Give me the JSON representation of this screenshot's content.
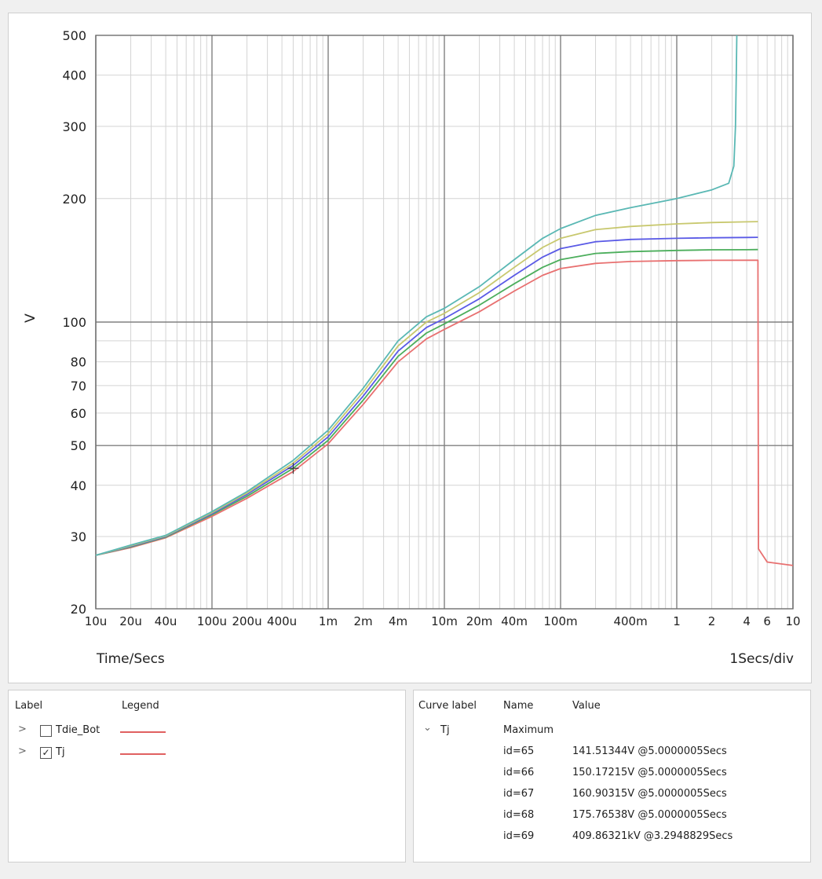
{
  "chart_data": {
    "type": "line",
    "xscale": "log",
    "yscale": "log",
    "xlim": [
      1e-05,
      10
    ],
    "ylim": [
      20,
      500
    ],
    "ylabel": "V",
    "xlabel": "Time/Secs",
    "scale_label": "1Secs/div",
    "grid": true,
    "x_major_ticks": [
      {
        "value": 1e-05,
        "label": "10u"
      },
      {
        "value": 0.0001,
        "label": "100u"
      },
      {
        "value": 0.001,
        "label": "1m"
      },
      {
        "value": 0.01,
        "label": "10m"
      },
      {
        "value": 0.1,
        "label": "100m"
      },
      {
        "value": 1,
        "label": "1"
      },
      {
        "value": 10,
        "label": "10"
      }
    ],
    "x_minor_ticks": [
      {
        "value": 2e-05,
        "label": "20u"
      },
      {
        "value": 4e-05,
        "label": "40u"
      },
      {
        "value": 0.0002,
        "label": "200u"
      },
      {
        "value": 0.0004,
        "label": "400u"
      },
      {
        "value": 0.002,
        "label": "2m"
      },
      {
        "value": 0.004,
        "label": "4m"
      },
      {
        "value": 0.02,
        "label": "20m"
      },
      {
        "value": 0.04,
        "label": "40m"
      },
      {
        "value": 0.4,
        "label": "400m"
      },
      {
        "value": 2,
        "label": "2"
      },
      {
        "value": 4,
        "label": "4"
      },
      {
        "value": 6,
        "label": "6"
      }
    ],
    "y_ticks": [
      {
        "value": 20,
        "label": "20"
      },
      {
        "value": 30,
        "label": "30"
      },
      {
        "value": 40,
        "label": "40"
      },
      {
        "value": 50,
        "label": "50"
      },
      {
        "value": 60,
        "label": "60"
      },
      {
        "value": 70,
        "label": "70"
      },
      {
        "value": 80,
        "label": "80"
      },
      {
        "value": 100,
        "label": "100"
      },
      {
        "value": 200,
        "label": "200"
      },
      {
        "value": 300,
        "label": "300"
      },
      {
        "value": 400,
        "label": "400"
      },
      {
        "value": 500,
        "label": "500"
      }
    ],
    "cursor": {
      "x": 0.0005,
      "y": 44
    },
    "series": [
      {
        "color": "#e87070",
        "x": [
          1e-05,
          2e-05,
          4e-05,
          0.0001,
          0.0002,
          0.0005,
          0.001,
          0.002,
          0.004,
          0.007,
          0.01,
          0.02,
          0.04,
          0.07,
          0.1,
          0.2,
          0.4,
          1,
          2,
          4,
          5.0,
          5.05,
          6,
          10
        ],
        "y": [
          27,
          28.2,
          29.8,
          33.6,
          37.2,
          43.2,
          50.5,
          63,
          80,
          91,
          96,
          106,
          119,
          130,
          135,
          139,
          140.5,
          141.2,
          141.4,
          141.5,
          141.5,
          28,
          26,
          25.5
        ]
      },
      {
        "color": "#4cae5c",
        "x": [
          1e-05,
          2e-05,
          4e-05,
          0.0001,
          0.0002,
          0.0005,
          0.001,
          0.002,
          0.004,
          0.007,
          0.01,
          0.02,
          0.04,
          0.07,
          0.1,
          0.2,
          0.4,
          1,
          2,
          4,
          5.0
        ],
        "y": [
          27,
          28.3,
          29.9,
          33.9,
          37.6,
          44,
          51.5,
          64.5,
          82.5,
          94,
          99,
          110,
          124,
          136,
          142,
          147,
          148.5,
          149.5,
          150,
          150.1,
          150.2
        ]
      },
      {
        "color": "#5a5ae6",
        "x": [
          1e-05,
          2e-05,
          4e-05,
          0.0001,
          0.0002,
          0.0005,
          0.001,
          0.002,
          0.004,
          0.007,
          0.01,
          0.02,
          0.04,
          0.07,
          0.1,
          0.2,
          0.4,
          1,
          2,
          4,
          5.0
        ],
        "y": [
          27,
          28.4,
          30,
          34.1,
          38,
          44.7,
          52.5,
          66,
          85,
          97,
          102,
          114,
          130,
          144,
          151,
          157,
          159,
          160,
          160.5,
          160.8,
          160.9
        ]
      },
      {
        "color": "#c8c86e",
        "x": [
          1e-05,
          2e-05,
          4e-05,
          0.0001,
          0.0002,
          0.0005,
          0.001,
          0.002,
          0.004,
          0.007,
          0.01,
          0.02,
          0.04,
          0.07,
          0.1,
          0.2,
          0.4,
          1,
          2,
          4,
          5.0
        ],
        "y": [
          27,
          28.5,
          30.1,
          34.3,
          38.3,
          45.3,
          53.5,
          67.5,
          87.5,
          100,
          105,
          118,
          136,
          152,
          160,
          168,
          171,
          173.5,
          174.8,
          175.5,
          175.8
        ]
      },
      {
        "color": "#5ab8b4",
        "x": [
          1e-05,
          2e-05,
          4e-05,
          0.0001,
          0.0002,
          0.0005,
          0.001,
          0.002,
          0.004,
          0.007,
          0.01,
          0.02,
          0.04,
          0.07,
          0.1,
          0.2,
          0.4,
          1,
          2,
          2.8,
          3.1,
          3.2,
          3.25,
          3.29
        ],
        "y": [
          27,
          28.6,
          30.2,
          34.5,
          38.6,
          46,
          54.5,
          69,
          90,
          103,
          108,
          122,
          142,
          160,
          169,
          182,
          190,
          200,
          210,
          218,
          240,
          300,
          400,
          500
        ]
      }
    ]
  },
  "legend_panel": {
    "headers": {
      "label": "Label",
      "legend": "Legend"
    },
    "rows": [
      {
        "chevron": ">",
        "checked": false,
        "checkmark": "",
        "label": "Tdie_Bot",
        "color": "#e06060"
      },
      {
        "chevron": ">",
        "checked": true,
        "checkmark": "✓",
        "label": "Tj",
        "color": "#e06060"
      }
    ]
  },
  "values_panel": {
    "headers": {
      "curve_label": "Curve label",
      "name": "Name",
      "value": "Value"
    },
    "curve": {
      "chevron": "⌄",
      "label": "Tj",
      "name": "Maximum"
    },
    "rows": [
      {
        "id": "id=65",
        "value": "141.51344V @5.0000005Secs"
      },
      {
        "id": "id=66",
        "value": "150.17215V @5.0000005Secs"
      },
      {
        "id": "id=67",
        "value": "160.90315V @5.0000005Secs"
      },
      {
        "id": "id=68",
        "value": "175.76538V @5.0000005Secs"
      },
      {
        "id": "id=69",
        "value": "409.86321kV @3.2948829Secs"
      }
    ]
  }
}
